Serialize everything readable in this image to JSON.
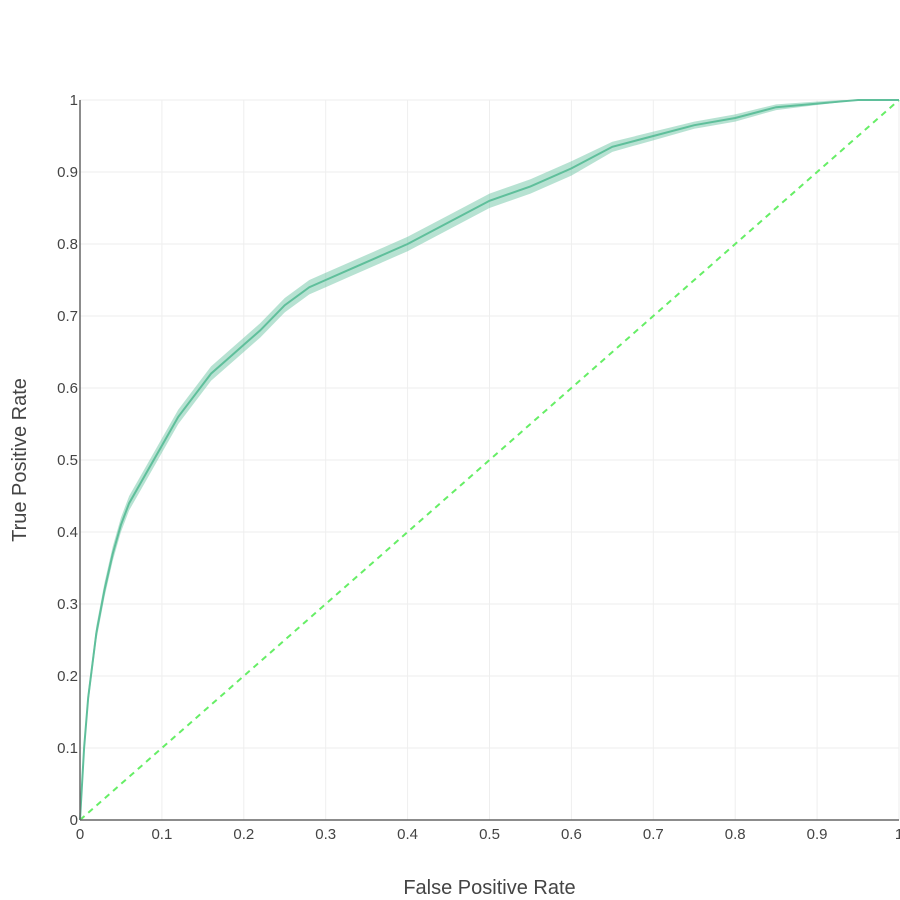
{
  "chart_data": {
    "type": "line",
    "title": "",
    "xlabel": "False Positive Rate",
    "ylabel": "True Positive Rate",
    "xlim": [
      0,
      1
    ],
    "ylim": [
      0,
      1
    ],
    "grid": true,
    "legend": "none",
    "x_ticks": [
      "0",
      "0.1",
      "0.2",
      "0.3",
      "0.4",
      "0.5",
      "0.6",
      "0.7",
      "0.8",
      "0.9",
      "1"
    ],
    "y_ticks": [
      "0",
      "0.1",
      "0.2",
      "0.3",
      "0.4",
      "0.5",
      "0.6",
      "0.7",
      "0.8",
      "0.9",
      "1"
    ],
    "series": [
      {
        "kind": "roc-curve",
        "color": "#5fbf9b",
        "x": [
          0.0,
          0.005,
          0.01,
          0.02,
          0.03,
          0.04,
          0.05,
          0.06,
          0.08,
          0.1,
          0.12,
          0.14,
          0.16,
          0.18,
          0.2,
          0.22,
          0.25,
          0.28,
          0.3,
          0.33,
          0.36,
          0.4,
          0.45,
          0.5,
          0.55,
          0.6,
          0.65,
          0.7,
          0.75,
          0.8,
          0.85,
          0.9,
          0.93,
          0.95,
          1.0
        ],
        "y": [
          0.0,
          0.1,
          0.17,
          0.26,
          0.32,
          0.37,
          0.41,
          0.44,
          0.48,
          0.52,
          0.56,
          0.59,
          0.62,
          0.64,
          0.66,
          0.68,
          0.715,
          0.74,
          0.75,
          0.765,
          0.78,
          0.8,
          0.83,
          0.86,
          0.88,
          0.905,
          0.935,
          0.95,
          0.965,
          0.975,
          0.99,
          0.995,
          0.998,
          1.0,
          1.0
        ],
        "band_lower": [
          0.0,
          0.09,
          0.16,
          0.25,
          0.31,
          0.36,
          0.4,
          0.43,
          0.47,
          0.51,
          0.55,
          0.58,
          0.61,
          0.63,
          0.65,
          0.67,
          0.705,
          0.73,
          0.74,
          0.755,
          0.77,
          0.79,
          0.82,
          0.85,
          0.87,
          0.895,
          0.928,
          0.944,
          0.96,
          0.97,
          0.986,
          0.993,
          0.997,
          1.0,
          1.0
        ],
        "band_upper": [
          0.0,
          0.11,
          0.18,
          0.27,
          0.33,
          0.38,
          0.42,
          0.45,
          0.49,
          0.53,
          0.57,
          0.6,
          0.63,
          0.65,
          0.67,
          0.69,
          0.725,
          0.75,
          0.76,
          0.775,
          0.79,
          0.81,
          0.84,
          0.87,
          0.89,
          0.915,
          0.942,
          0.956,
          0.97,
          0.98,
          0.994,
          0.998,
          1.0,
          1.0,
          1.0
        ]
      },
      {
        "kind": "chance-line",
        "color": "#66ee66",
        "dashed": true,
        "x": [
          0,
          1
        ],
        "y": [
          0,
          1
        ]
      }
    ]
  }
}
